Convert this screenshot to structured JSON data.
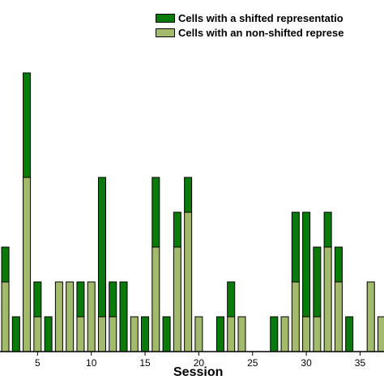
{
  "chart_data": {
    "type": "bar",
    "stacked": true,
    "xlabel": "Session",
    "ylabel": "",
    "ylim": [
      0,
      8
    ],
    "xlim": [
      0.5,
      38.5
    ],
    "xticks": [
      5,
      10,
      15,
      20,
      25,
      30,
      35
    ],
    "grid": false,
    "legend_position": "top-right",
    "categories": [
      1,
      2,
      3,
      4,
      5,
      6,
      7,
      8,
      9,
      10,
      11,
      12,
      13,
      14,
      15,
      16,
      17,
      18,
      19,
      20,
      21,
      22,
      23,
      24,
      25,
      26,
      27,
      28,
      29,
      30,
      31,
      32,
      33,
      34,
      35,
      36,
      37,
      38
    ],
    "series": [
      {
        "name": "Cells with an non-shifted represe",
        "color": "#a3b96b",
        "values": [
          3,
          2,
          0,
          5,
          1,
          0,
          2,
          2,
          1,
          2,
          1,
          1,
          0,
          1,
          0,
          3,
          0,
          3,
          4,
          1,
          0,
          0,
          1,
          1,
          0,
          0,
          0,
          1,
          2,
          1,
          1,
          3,
          2,
          0,
          0,
          2,
          1,
          0
        ]
      },
      {
        "name": "Cells with a shifted representatio",
        "color": "#0a7a0a",
        "values": [
          2,
          1,
          1,
          3,
          1,
          1,
          0,
          0,
          1,
          0,
          4,
          1,
          2,
          0,
          1,
          2,
          1,
          1,
          1,
          0,
          0,
          1,
          1,
          0,
          0,
          0,
          1,
          0,
          2,
          3,
          2,
          1,
          1,
          1,
          0,
          0,
          0,
          0
        ]
      }
    ]
  }
}
